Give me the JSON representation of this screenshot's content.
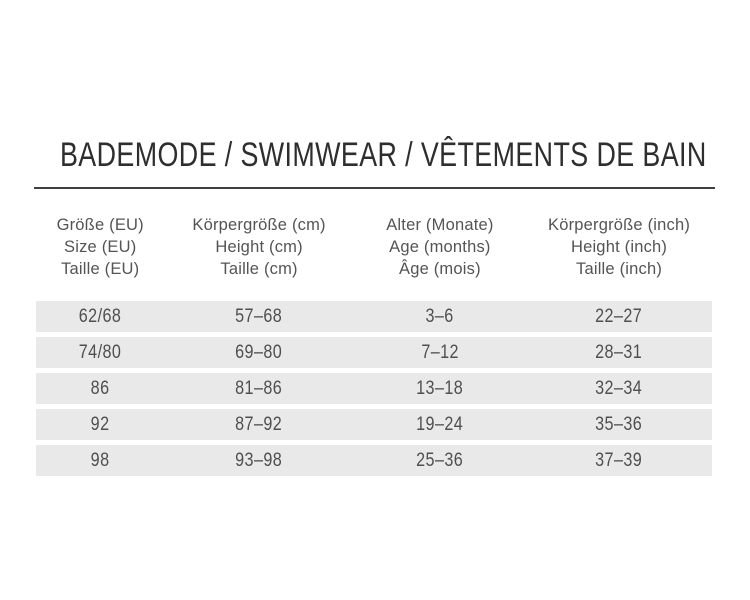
{
  "title": "BADEMODE / SWIMWEAR / VÊTEMENTS DE BAIN",
  "colors": {
    "background": "#ffffff",
    "row_background": "#e9e9e9",
    "title_text": "#2e2e2e",
    "header_text": "#545454",
    "cell_text": "#4f4f4f",
    "divider": "#3f3f3f"
  },
  "table": {
    "columns": [
      {
        "id": "size-eu",
        "lines": [
          "Größe (EU)",
          "Size (EU)",
          "Taille (EU)"
        ]
      },
      {
        "id": "height-cm",
        "lines": [
          "Körpergröße (cm)",
          "Height (cm)",
          "Taille (cm)"
        ]
      },
      {
        "id": "age-months",
        "lines": [
          "Alter (Monate)",
          "Age (months)",
          "Âge (mois)"
        ]
      },
      {
        "id": "height-inch",
        "lines": [
          "Körpergröße (inch)",
          "Height (inch)",
          "Taille (inch)"
        ]
      }
    ],
    "rows": [
      {
        "cells": [
          "62/68",
          "57–68",
          "3–6",
          "22–27"
        ]
      },
      {
        "cells": [
          "74/80",
          "69–80",
          "7–12",
          "28–31"
        ]
      },
      {
        "cells": [
          "86",
          "81–86",
          "13–18",
          "32–34"
        ]
      },
      {
        "cells": [
          "92",
          "87–92",
          "19–24",
          "35–36"
        ]
      },
      {
        "cells": [
          "98",
          "93–98",
          "25–36",
          "37–39"
        ]
      }
    ]
  }
}
